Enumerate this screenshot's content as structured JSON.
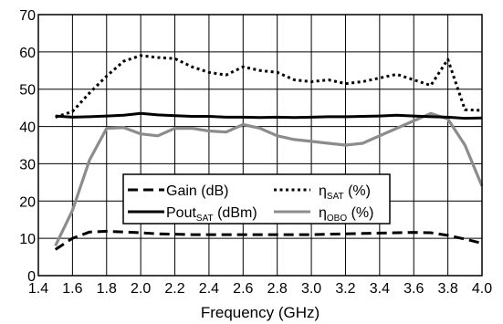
{
  "chart_data": {
    "type": "line",
    "xlabel": "Frequency (GHz)",
    "ylabel": "",
    "xlim": [
      1.4,
      4.0
    ],
    "ylim": [
      0,
      70
    ],
    "xticks": [
      1.4,
      1.6,
      1.8,
      2.0,
      2.2,
      2.4,
      2.6,
      2.8,
      3.0,
      3.2,
      3.4,
      3.6,
      3.8,
      4.0
    ],
    "xtick_labels": [
      "1.4",
      "1.6",
      "1.8",
      "2.0",
      "2.2",
      "2.4",
      "2.6",
      "2.8",
      "3.0",
      "3.2",
      "3.4",
      "3.6",
      "3.8",
      "4.0"
    ],
    "yticks": [
      0,
      10,
      20,
      30,
      40,
      50,
      60,
      70
    ],
    "ytick_labels": [
      "0",
      "10",
      "20",
      "30",
      "40",
      "50",
      "60",
      "70"
    ],
    "grid": true,
    "legend_position": "center-bottom",
    "series": [
      {
        "name": "Gain (dB)",
        "name_parts": [
          "Gain (dB)"
        ],
        "style": "dashed",
        "color": "#000000",
        "x": [
          1.5,
          1.6,
          1.7,
          1.8,
          1.9,
          2.0,
          2.1,
          2.2,
          2.3,
          2.4,
          2.5,
          2.6,
          2.7,
          2.8,
          2.9,
          3.0,
          3.1,
          3.2,
          3.3,
          3.4,
          3.5,
          3.6,
          3.7,
          3.8,
          3.9,
          4.0
        ],
        "values": [
          7,
          10,
          11.7,
          11.9,
          11.7,
          11.5,
          11.2,
          11.1,
          11.0,
          11.0,
          11.0,
          11.0,
          11.0,
          11.0,
          11.0,
          11.0,
          11.1,
          11.2,
          11.3,
          11.4,
          11.5,
          11.6,
          11.5,
          10.8,
          9.8,
          8.7
        ]
      },
      {
        "name": "Pout_SAT (dBm)",
        "name_parts": [
          "Pout",
          "SAT",
          " (dBm)"
        ],
        "style": "solid",
        "color": "#000000",
        "x": [
          1.5,
          1.6,
          1.7,
          1.8,
          1.9,
          2.0,
          2.1,
          2.2,
          2.3,
          2.4,
          2.5,
          2.6,
          2.7,
          2.8,
          2.9,
          3.0,
          3.1,
          3.2,
          3.3,
          3.4,
          3.5,
          3.6,
          3.7,
          3.8,
          3.9,
          4.0
        ],
        "values": [
          42.8,
          42.5,
          42.6,
          42.8,
          43.0,
          43.5,
          43.1,
          42.9,
          42.7,
          42.7,
          42.5,
          42.5,
          42.4,
          42.5,
          42.4,
          42.5,
          42.6,
          42.6,
          42.7,
          42.8,
          43.0,
          42.8,
          42.6,
          42.5,
          42.2,
          42.3
        ]
      },
      {
        "name": "ηSAT (%)",
        "name_parts": [
          "η",
          "SAT",
          " (%)"
        ],
        "style": "dotted",
        "color": "#000000",
        "x": [
          1.5,
          1.6,
          1.7,
          1.8,
          1.9,
          2.0,
          2.1,
          2.2,
          2.3,
          2.4,
          2.5,
          2.6,
          2.7,
          2.8,
          2.9,
          3.0,
          3.1,
          3.2,
          3.3,
          3.4,
          3.5,
          3.6,
          3.7,
          3.8,
          3.9,
          4.0
        ],
        "values": [
          42.5,
          44,
          49,
          53.5,
          57.5,
          59,
          58.5,
          58.2,
          56,
          54.5,
          53.8,
          56,
          55,
          54.5,
          52.5,
          52,
          52.5,
          51.5,
          52,
          53,
          54,
          52.5,
          51,
          58,
          44.5,
          44.3
        ]
      },
      {
        "name": "ηOBO (%)",
        "name_parts": [
          "η",
          "OBO",
          " (%)"
        ],
        "style": "solid",
        "color": "#8c8c8c",
        "x": [
          1.5,
          1.6,
          1.7,
          1.8,
          1.9,
          2.0,
          2.1,
          2.2,
          2.3,
          2.4,
          2.5,
          2.6,
          2.7,
          2.8,
          2.9,
          3.0,
          3.1,
          3.2,
          3.3,
          3.4,
          3.5,
          3.6,
          3.7,
          3.8,
          3.9,
          4.0
        ],
        "values": [
          8,
          17.5,
          31,
          39.5,
          39.7,
          38,
          37.5,
          39.5,
          39.5,
          38.8,
          38.5,
          40.5,
          39.5,
          37.5,
          36.5,
          36,
          35.5,
          35,
          35.5,
          37.5,
          39.5,
          41.5,
          43.5,
          42,
          35,
          24
        ]
      }
    ]
  }
}
